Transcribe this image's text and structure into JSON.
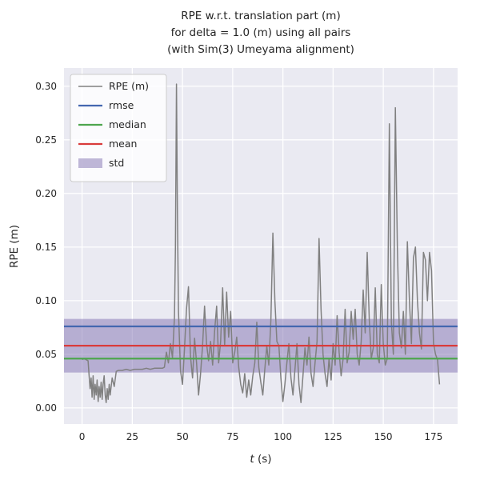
{
  "chart_data": {
    "type": "line",
    "title": "RPE w.r.t. translation part (m)\nfor delta = 1.0 (m) using all pairs\n(with Sim(3) Umeyama alignment)",
    "title_lines": [
      "RPE w.r.t. translation part (m)",
      "for delta = 1.0 (m) using all pairs",
      "(with Sim(3) Umeyama alignment)"
    ],
    "xlabel": "t (s)",
    "ylabel": "RPE (m)",
    "xlim": [
      -9,
      187
    ],
    "ylim": [
      -0.015,
      0.317
    ],
    "xticks": [
      0,
      25,
      50,
      75,
      100,
      125,
      150,
      175
    ],
    "xtick_labels": [
      "0",
      "25",
      "50",
      "75",
      "100",
      "125",
      "150",
      "175"
    ],
    "yticks": [
      0.0,
      0.05,
      0.1,
      0.15,
      0.2,
      0.25,
      0.3
    ],
    "ytick_labels": [
      "0.00",
      "0.05",
      "0.10",
      "0.15",
      "0.20",
      "0.25",
      "0.30"
    ],
    "grid": true,
    "legend_position": "upper left",
    "axes_background": "#EAEAF2",
    "grid_color": "#FFFFFF",
    "series": [
      {
        "name": "RPE (m)",
        "kind": "line",
        "color": "#808080",
        "points": [
          [
            0,
            0.045
          ],
          [
            1,
            0.046
          ],
          [
            2,
            0.045
          ],
          [
            3,
            0.044
          ],
          [
            3.5,
            0.03
          ],
          [
            4,
            0.018
          ],
          [
            4.5,
            0.028
          ],
          [
            5,
            0.01
          ],
          [
            5.5,
            0.03
          ],
          [
            6,
            0.008
          ],
          [
            6.5,
            0.022
          ],
          [
            7,
            0.012
          ],
          [
            7.5,
            0.026
          ],
          [
            8,
            0.006
          ],
          [
            8.5,
            0.02
          ],
          [
            9,
            0.01
          ],
          [
            9.5,
            0.024
          ],
          [
            10,
            0.008
          ],
          [
            10.5,
            0.022
          ],
          [
            11,
            0.03
          ],
          [
            11.5,
            0.012
          ],
          [
            12,
            0.005
          ],
          [
            12.5,
            0.018
          ],
          [
            13,
            0.008
          ],
          [
            13.5,
            0.022
          ],
          [
            14,
            0.012
          ],
          [
            15,
            0.028
          ],
          [
            16,
            0.02
          ],
          [
            17,
            0.034
          ],
          [
            18,
            0.035
          ],
          [
            20,
            0.035
          ],
          [
            22,
            0.036
          ],
          [
            24,
            0.035
          ],
          [
            26,
            0.036
          ],
          [
            28,
            0.036
          ],
          [
            30,
            0.036
          ],
          [
            32,
            0.037
          ],
          [
            34,
            0.036
          ],
          [
            36,
            0.037
          ],
          [
            38,
            0.037
          ],
          [
            40,
            0.037
          ],
          [
            41,
            0.038
          ],
          [
            42,
            0.052
          ],
          [
            43,
            0.042
          ],
          [
            44,
            0.06
          ],
          [
            45,
            0.047
          ],
          [
            46,
            0.085
          ],
          [
            46.5,
            0.15
          ],
          [
            47,
            0.302
          ],
          [
            47.5,
            0.18
          ],
          [
            48,
            0.09
          ],
          [
            49,
            0.035
          ],
          [
            50,
            0.022
          ],
          [
            51,
            0.055
          ],
          [
            52,
            0.092
          ],
          [
            53,
            0.113
          ],
          [
            54,
            0.048
          ],
          [
            55,
            0.028
          ],
          [
            56,
            0.065
          ],
          [
            57,
            0.042
          ],
          [
            58,
            0.012
          ],
          [
            59,
            0.032
          ],
          [
            60,
            0.058
          ],
          [
            61,
            0.095
          ],
          [
            62,
            0.06
          ],
          [
            63,
            0.044
          ],
          [
            64,
            0.062
          ],
          [
            65,
            0.04
          ],
          [
            66,
            0.072
          ],
          [
            67,
            0.095
          ],
          [
            68,
            0.042
          ],
          [
            69,
            0.062
          ],
          [
            70,
            0.112
          ],
          [
            71,
            0.058
          ],
          [
            72,
            0.108
          ],
          [
            73,
            0.066
          ],
          [
            74,
            0.09
          ],
          [
            75,
            0.042
          ],
          [
            76,
            0.052
          ],
          [
            77,
            0.066
          ],
          [
            78,
            0.038
          ],
          [
            79,
            0.022
          ],
          [
            80,
            0.014
          ],
          [
            81,
            0.032
          ],
          [
            82,
            0.01
          ],
          [
            83,
            0.026
          ],
          [
            84,
            0.012
          ],
          [
            85,
            0.03
          ],
          [
            86,
            0.042
          ],
          [
            87,
            0.08
          ],
          [
            88,
            0.038
          ],
          [
            89,
            0.024
          ],
          [
            90,
            0.012
          ],
          [
            91,
            0.036
          ],
          [
            92,
            0.058
          ],
          [
            93,
            0.04
          ],
          [
            94,
            0.082
          ],
          [
            95,
            0.163
          ],
          [
            96,
            0.1
          ],
          [
            97,
            0.062
          ],
          [
            98,
            0.058
          ],
          [
            99,
            0.028
          ],
          [
            100,
            0.006
          ],
          [
            101,
            0.022
          ],
          [
            102,
            0.042
          ],
          [
            103,
            0.06
          ],
          [
            104,
            0.028
          ],
          [
            105,
            0.012
          ],
          [
            106,
            0.036
          ],
          [
            107,
            0.06
          ],
          [
            108,
            0.022
          ],
          [
            109,
            0.005
          ],
          [
            110,
            0.03
          ],
          [
            111,
            0.056
          ],
          [
            112,
            0.04
          ],
          [
            113,
            0.066
          ],
          [
            114,
            0.032
          ],
          [
            115,
            0.02
          ],
          [
            116,
            0.042
          ],
          [
            117,
            0.062
          ],
          [
            118,
            0.158
          ],
          [
            119,
            0.092
          ],
          [
            120,
            0.05
          ],
          [
            121,
            0.032
          ],
          [
            122,
            0.02
          ],
          [
            123,
            0.046
          ],
          [
            124,
            0.026
          ],
          [
            125,
            0.06
          ],
          [
            126,
            0.04
          ],
          [
            127,
            0.086
          ],
          [
            128,
            0.052
          ],
          [
            129,
            0.03
          ],
          [
            130,
            0.046
          ],
          [
            131,
            0.092
          ],
          [
            132,
            0.042
          ],
          [
            133,
            0.052
          ],
          [
            134,
            0.09
          ],
          [
            135,
            0.064
          ],
          [
            136,
            0.092
          ],
          [
            137,
            0.05
          ],
          [
            138,
            0.04
          ],
          [
            139,
            0.062
          ],
          [
            140,
            0.11
          ],
          [
            141,
            0.07
          ],
          [
            142,
            0.145
          ],
          [
            143,
            0.082
          ],
          [
            144,
            0.046
          ],
          [
            145,
            0.056
          ],
          [
            146,
            0.112
          ],
          [
            147,
            0.05
          ],
          [
            148,
            0.042
          ],
          [
            149,
            0.115
          ],
          [
            150,
            0.06
          ],
          [
            151,
            0.04
          ],
          [
            152,
            0.046
          ],
          [
            153,
            0.265
          ],
          [
            154,
            0.08
          ],
          [
            155,
            0.05
          ],
          [
            156,
            0.28
          ],
          [
            157,
            0.15
          ],
          [
            158,
            0.07
          ],
          [
            159,
            0.056
          ],
          [
            160,
            0.09
          ],
          [
            161,
            0.05
          ],
          [
            162,
            0.155
          ],
          [
            163,
            0.1
          ],
          [
            164,
            0.06
          ],
          [
            165,
            0.14
          ],
          [
            166,
            0.15
          ],
          [
            167,
            0.1
          ],
          [
            168,
            0.07
          ],
          [
            169,
            0.055
          ],
          [
            170,
            0.145
          ],
          [
            171,
            0.138
          ],
          [
            172,
            0.1
          ],
          [
            173,
            0.145
          ],
          [
            174,
            0.128
          ],
          [
            175,
            0.06
          ],
          [
            176,
            0.05
          ],
          [
            177,
            0.045
          ],
          [
            178,
            0.022
          ]
        ]
      },
      {
        "name": "rmse",
        "kind": "hline",
        "color": "#4467b0",
        "value": 0.076
      },
      {
        "name": "median",
        "kind": "hline",
        "color": "#4ea64e",
        "value": 0.046
      },
      {
        "name": "mean",
        "kind": "hline",
        "color": "#d93b3b",
        "value": 0.058
      },
      {
        "name": "std",
        "kind": "hband",
        "color": "#8172B2",
        "alpha": 0.5,
        "range": [
          0.033,
          0.083
        ]
      }
    ]
  }
}
